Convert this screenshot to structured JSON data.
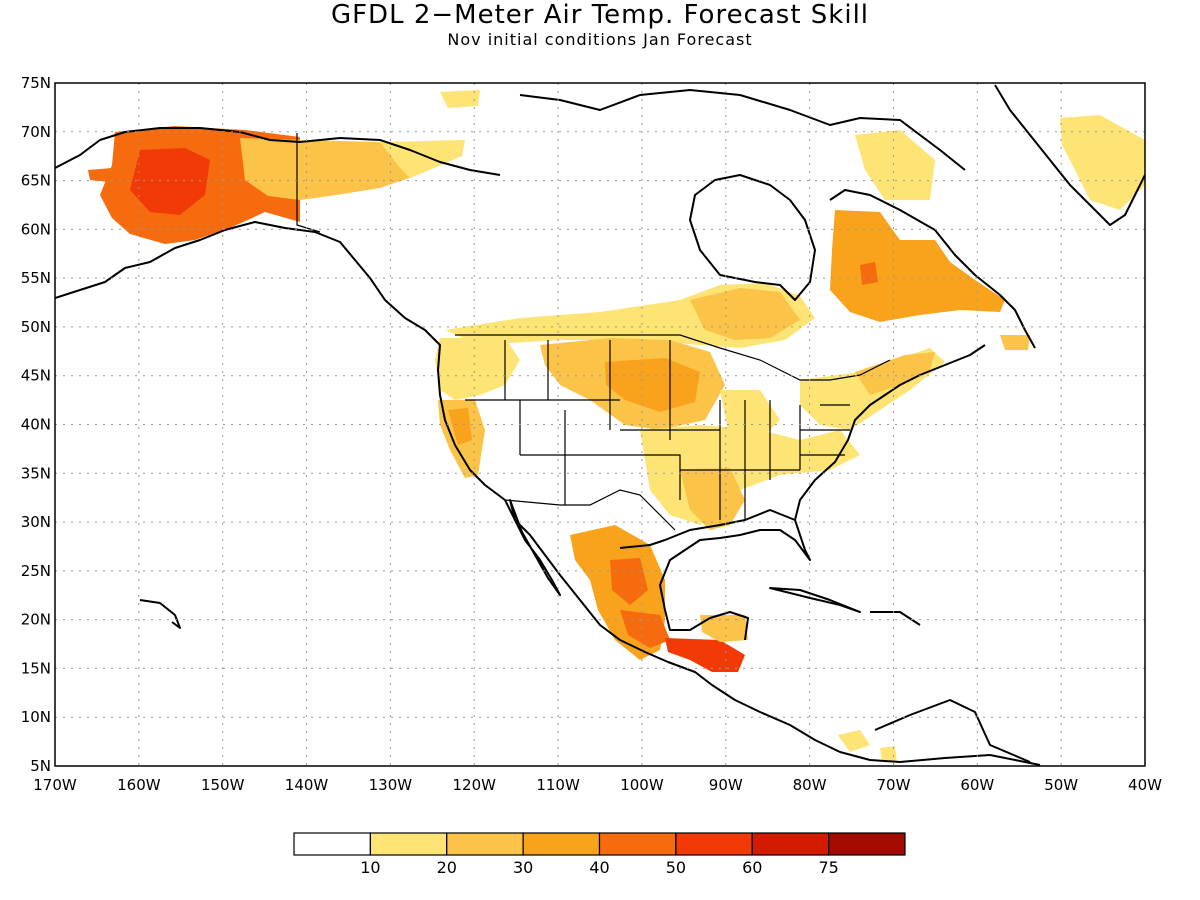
{
  "title": "GFDL 2−Meter Air Temp. Forecast Skill",
  "subtitle": "Nov initial conditions  Jan Forecast",
  "map": {
    "lon_range": [
      -170,
      -40
    ],
    "lat_range": [
      5,
      75
    ],
    "grid": "dotted",
    "lat_ticks": [
      "75N",
      "70N",
      "65N",
      "60N",
      "55N",
      "50N",
      "45N",
      "40N",
      "35N",
      "30N",
      "25N",
      "20N",
      "15N",
      "10N",
      "5N"
    ],
    "lon_ticks": [
      "170W",
      "160W",
      "150W",
      "140W",
      "130W",
      "120W",
      "110W",
      "100W",
      "90W",
      "80W",
      "70W",
      "60W",
      "50W",
      "40W"
    ]
  },
  "colorbar": {
    "labels": [
      "10",
      "20",
      "30",
      "40",
      "50",
      "60",
      "75"
    ],
    "colors": [
      "#ffffff",
      "#fde474",
      "#fbc347",
      "#f9a21c",
      "#f56b0e",
      "#f23a06",
      "#d31b02",
      "#a30a00"
    ]
  },
  "regions": [
    {
      "name": "alaska",
      "color": "#f56b0e"
    },
    {
      "name": "alaska-core",
      "color": "#f23a06"
    },
    {
      "name": "yukon",
      "color": "#fbc347"
    },
    {
      "name": "canada-north-strip",
      "color": "#fde474"
    },
    {
      "name": "southern-canada-band",
      "color": "#fde474"
    },
    {
      "name": "northern-plains",
      "color": "#fbc347"
    },
    {
      "name": "dakotas-core",
      "color": "#f9a21c"
    },
    {
      "name": "pacific-northwest",
      "color": "#fde474"
    },
    {
      "name": "california",
      "color": "#fbc347"
    },
    {
      "name": "southern-us",
      "color": "#fde474"
    },
    {
      "name": "mississippi-valley",
      "color": "#fbc347"
    },
    {
      "name": "northeast-us",
      "color": "#fbc347"
    },
    {
      "name": "quebec-labrador",
      "color": "#f9a21c"
    },
    {
      "name": "hudson-strait",
      "color": "#fde474"
    },
    {
      "name": "greenland-east",
      "color": "#fde474"
    },
    {
      "name": "mexico",
      "color": "#f9a21c"
    },
    {
      "name": "mexico-core",
      "color": "#f56b0e"
    },
    {
      "name": "central-america",
      "color": "#f23a06"
    },
    {
      "name": "caribbean-south",
      "color": "#fde474"
    }
  ]
}
